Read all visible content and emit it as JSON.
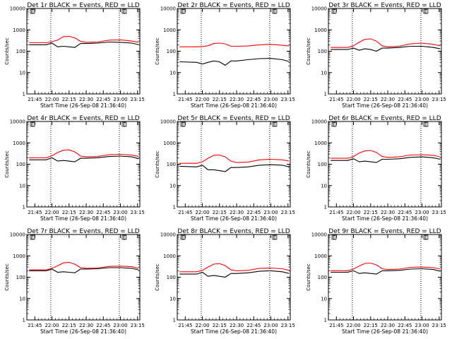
{
  "figure": {
    "xlabel": "Start Time (26-Sep-08 21:36:40)",
    "ylabel": "Counts/sec",
    "x_tick_labels": [
      "21:45",
      "22:00",
      "22:15",
      "22:30",
      "22:45",
      "23:00",
      "23:15"
    ],
    "y_tick_labels": [
      "1",
      "10",
      "100",
      "1000",
      "10000"
    ],
    "legend_marker_glyph": "E"
  },
  "chart_data": [
    {
      "type": "line",
      "title": "Det 1r BLACK = Events, RED = LLD",
      "xlabel": "Start Time (26-Sep-08 21:36:40)",
      "ylabel": "Counts/sec",
      "ylog": true,
      "ylim": [
        1,
        10000
      ],
      "xlim": [
        "21:38",
        "23:17"
      ],
      "x": [
        "21:40",
        "21:55",
        "22:00",
        "22:05",
        "22:10",
        "22:15",
        "22:20",
        "22:25",
        "22:30",
        "22:40",
        "22:50",
        "23:00",
        "23:10",
        "23:16"
      ],
      "series": [
        {
          "name": "BLACK",
          "color": "#000000",
          "values": [
            200,
            200,
            240,
            160,
            170,
            160,
            150,
            230,
            230,
            240,
            270,
            260,
            240,
            200
          ]
        },
        {
          "name": "RED",
          "color": "#ff0000",
          "values": [
            250,
            250,
            280,
            330,
            480,
            500,
            420,
            290,
            260,
            270,
            330,
            340,
            300,
            260
          ]
        }
      ],
      "vlines": [
        "21:59",
        "22:59"
      ]
    },
    {
      "type": "line",
      "title": "Det 2r BLACK = Events, RED = LLD",
      "xlabel": "Start Time (26-Sep-08 21:36:40)",
      "ylabel": "Counts/sec",
      "ylog": true,
      "ylim": [
        1,
        10000
      ],
      "xlim": [
        "21:38",
        "23:17"
      ],
      "x": [
        "21:40",
        "21:55",
        "22:00",
        "22:05",
        "22:10",
        "22:15",
        "22:20",
        "22:25",
        "22:30",
        "22:40",
        "22:50",
        "23:00",
        "23:10",
        "23:16"
      ],
      "series": [
        {
          "name": "BLACK",
          "color": "#000000",
          "values": [
            32,
            30,
            25,
            30,
            35,
            32,
            22,
            35,
            35,
            40,
            45,
            46,
            40,
            33
          ]
        },
        {
          "name": "RED",
          "color": "#ff0000",
          "values": [
            160,
            160,
            165,
            180,
            230,
            240,
            220,
            170,
            170,
            175,
            200,
            210,
            190,
            175
          ]
        }
      ],
      "vlines": [
        "21:59",
        "22:59"
      ]
    },
    {
      "type": "line",
      "title": "Det 3r BLACK = Events, RED = LLD",
      "xlabel": "Start Time (26-Sep-08 21:36:40)",
      "ylabel": "Counts/sec",
      "ylog": true,
      "ylim": [
        1,
        10000
      ],
      "xlim": [
        "21:38",
        "23:17"
      ],
      "x": [
        "21:40",
        "21:55",
        "22:00",
        "22:05",
        "22:10",
        "22:15",
        "22:20",
        "22:25",
        "22:30",
        "22:40",
        "22:50",
        "23:00",
        "23:10",
        "23:16"
      ],
      "series": [
        {
          "name": "BLACK",
          "color": "#000000",
          "values": [
            120,
            120,
            140,
            110,
            130,
            120,
            100,
            140,
            140,
            150,
            170,
            170,
            150,
            130
          ]
        },
        {
          "name": "RED",
          "color": "#ff0000",
          "values": [
            150,
            150,
            180,
            260,
            360,
            380,
            300,
            180,
            160,
            170,
            220,
            240,
            210,
            180
          ]
        }
      ],
      "vlines": [
        "21:59",
        "22:59"
      ]
    },
    {
      "type": "line",
      "title": "Det 4r BLACK = Events, RED = LLD",
      "xlabel": "Start Time (26-Sep-08 21:36:40)",
      "ylabel": "Counts/sec",
      "ylog": true,
      "ylim": [
        1,
        10000
      ],
      "xlim": [
        "21:38",
        "23:17"
      ],
      "x": [
        "21:40",
        "21:55",
        "22:00",
        "22:05",
        "22:10",
        "22:15",
        "22:20",
        "22:25",
        "22:30",
        "22:40",
        "22:50",
        "23:00",
        "23:10",
        "23:16"
      ],
      "series": [
        {
          "name": "BLACK",
          "color": "#000000",
          "values": [
            160,
            160,
            200,
            140,
            150,
            140,
            130,
            190,
            190,
            200,
            230,
            240,
            220,
            180
          ]
        },
        {
          "name": "RED",
          "color": "#ff0000",
          "values": [
            200,
            200,
            250,
            350,
            450,
            470,
            380,
            240,
            220,
            230,
            280,
            290,
            270,
            230
          ]
        }
      ],
      "vlines": [
        "21:59",
        "22:59"
      ]
    },
    {
      "type": "line",
      "title": "Det 5r BLACK = Events, RED = LLD",
      "xlabel": "Start Time (26-Sep-08 21:36:40)",
      "ylabel": "Counts/sec",
      "ylog": true,
      "ylim": [
        1,
        10000
      ],
      "xlim": [
        "21:38",
        "23:17"
      ],
      "x": [
        "21:40",
        "21:55",
        "22:00",
        "22:05",
        "22:10",
        "22:15",
        "22:20",
        "22:25",
        "22:30",
        "22:40",
        "22:50",
        "23:00",
        "23:10",
        "23:16"
      ],
      "series": [
        {
          "name": "BLACK",
          "color": "#000000",
          "values": [
            80,
            75,
            90,
            55,
            55,
            50,
            45,
            70,
            70,
            75,
            90,
            95,
            90,
            75
          ]
        },
        {
          "name": "RED",
          "color": "#ff0000",
          "values": [
            110,
            110,
            130,
            190,
            260,
            270,
            220,
            140,
            120,
            125,
            160,
            170,
            160,
            140
          ]
        }
      ],
      "vlines": [
        "21:59",
        "22:59"
      ]
    },
    {
      "type": "line",
      "title": "Det 6r BLACK = Events, RED = LLD",
      "xlabel": "Start Time (26-Sep-08 21:36:40)",
      "ylabel": "Counts/sec",
      "ylog": true,
      "ylim": [
        1,
        10000
      ],
      "xlim": [
        "21:38",
        "23:17"
      ],
      "x": [
        "21:40",
        "21:55",
        "22:00",
        "22:05",
        "22:10",
        "22:15",
        "22:20",
        "22:25",
        "22:30",
        "22:40",
        "22:50",
        "23:00",
        "23:10",
        "23:16"
      ],
      "series": [
        {
          "name": "BLACK",
          "color": "#000000",
          "values": [
            150,
            150,
            180,
            130,
            140,
            130,
            120,
            170,
            170,
            180,
            210,
            220,
            200,
            170
          ]
        },
        {
          "name": "RED",
          "color": "#ff0000",
          "values": [
            190,
            190,
            230,
            330,
            420,
            440,
            360,
            230,
            210,
            220,
            270,
            280,
            260,
            220
          ]
        }
      ],
      "vlines": [
        "21:59",
        "22:59"
      ]
    },
    {
      "type": "line",
      "title": "Det 7r BLACK = Events, RED = LLD",
      "xlabel": "Start Time (26-Sep-08 21:36:40)",
      "ylabel": "Counts/sec",
      "ylog": true,
      "ylim": [
        1,
        10000
      ],
      "xlim": [
        "21:38",
        "23:17"
      ],
      "x": [
        "21:40",
        "21:55",
        "22:00",
        "22:05",
        "22:10",
        "22:15",
        "22:20",
        "22:25",
        "22:30",
        "22:40",
        "22:50",
        "23:00",
        "23:10",
        "23:16"
      ],
      "series": [
        {
          "name": "BLACK",
          "color": "#000000",
          "values": [
            200,
            200,
            240,
            170,
            180,
            170,
            160,
            240,
            240,
            250,
            280,
            280,
            260,
            220
          ]
        },
        {
          "name": "RED",
          "color": "#ff0000",
          "values": [
            220,
            220,
            260,
            340,
            470,
            500,
            410,
            280,
            260,
            270,
            320,
            330,
            310,
            260
          ]
        }
      ],
      "vlines": [
        "21:59",
        "22:59"
      ]
    },
    {
      "type": "line",
      "title": "Det 8r BLACK = Events, RED = LLD",
      "xlabel": "Start Time (26-Sep-08 21:36:40)",
      "ylabel": "Counts/sec",
      "ylog": true,
      "ylim": [
        1,
        10000
      ],
      "xlim": [
        "21:38",
        "23:17"
      ],
      "x": [
        "21:40",
        "21:55",
        "22:00",
        "22:05",
        "22:10",
        "22:15",
        "22:20",
        "22:25",
        "22:30",
        "22:40",
        "22:50",
        "23:00",
        "23:10",
        "23:16"
      ],
      "series": [
        {
          "name": "BLACK",
          "color": "#000000",
          "values": [
            140,
            140,
            170,
            110,
            120,
            110,
            100,
            150,
            150,
            160,
            190,
            200,
            180,
            150
          ]
        },
        {
          "name": "RED",
          "color": "#ff0000",
          "values": [
            180,
            180,
            210,
            300,
            410,
            430,
            350,
            220,
            200,
            210,
            260,
            270,
            250,
            210
          ]
        }
      ],
      "vlines": [
        "21:59",
        "22:59"
      ]
    },
    {
      "type": "line",
      "title": "Det 9r BLACK = Events, RED = LLD",
      "xlabel": "Start Time (26-Sep-08 21:36:40)",
      "ylabel": "Counts/sec",
      "ylog": true,
      "ylim": [
        1,
        10000
      ],
      "xlim": [
        "21:38",
        "23:17"
      ],
      "x": [
        "21:40",
        "21:55",
        "22:00",
        "22:05",
        "22:10",
        "22:15",
        "22:20",
        "22:25",
        "22:30",
        "22:40",
        "22:50",
        "23:00",
        "23:10",
        "23:16"
      ],
      "series": [
        {
          "name": "BLACK",
          "color": "#000000",
          "values": [
            170,
            170,
            200,
            150,
            160,
            150,
            140,
            200,
            200,
            210,
            240,
            250,
            230,
            190
          ]
        },
        {
          "name": "RED",
          "color": "#ff0000",
          "values": [
            200,
            200,
            240,
            330,
            440,
            460,
            380,
            250,
            230,
            240,
            290,
            300,
            280,
            240
          ]
        }
      ],
      "vlines": [
        "21:59",
        "22:59"
      ]
    }
  ]
}
